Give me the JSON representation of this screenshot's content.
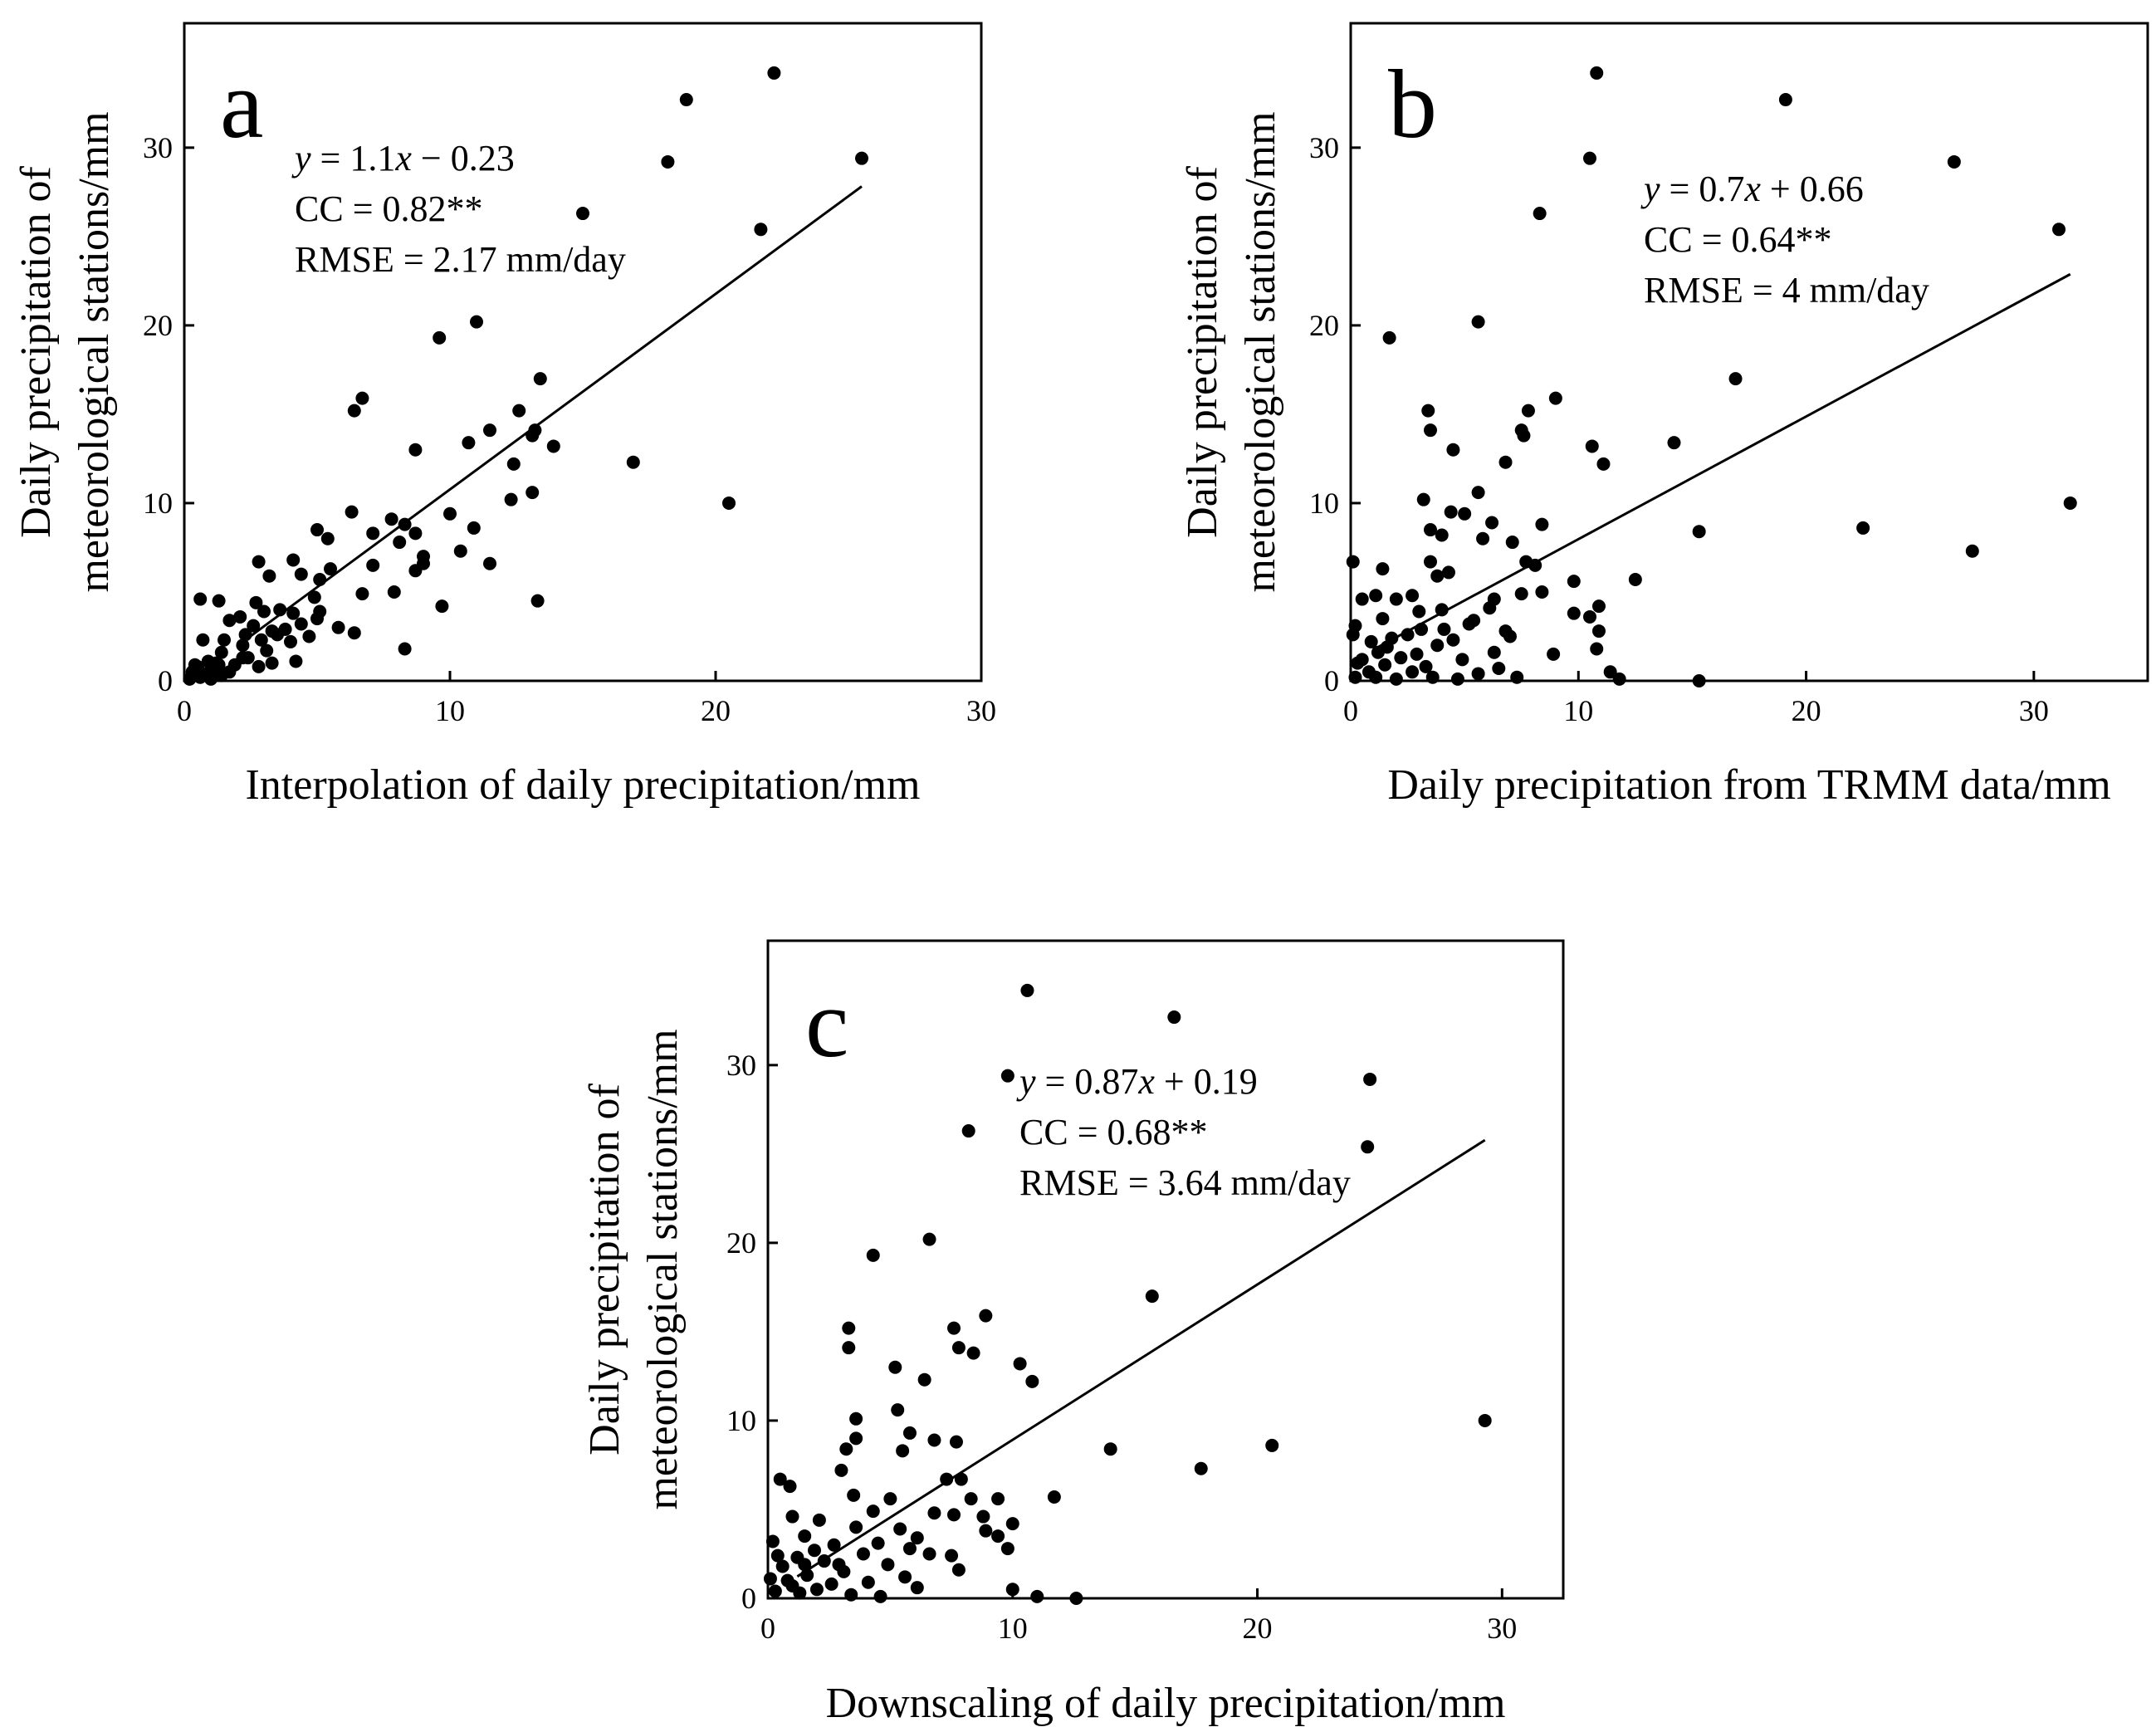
{
  "figure_title": "",
  "chart_data": [
    {
      "type": "scatter",
      "panel_label": "a",
      "title": "",
      "xlabel": "Interpolation of daily precipitation/mm",
      "ylabel_line1": "Daily precipitation of",
      "ylabel_line2": "meteorological stations/mm",
      "xlim": [
        0,
        30
      ],
      "ylim": [
        0,
        37
      ],
      "xticks": [
        0,
        10,
        20,
        30
      ],
      "yticks": [
        0,
        10,
        20,
        30
      ],
      "grid": false,
      "equation": "y = 1.1x − 0.23",
      "equation_y": "y",
      "equation_mid": " = 1.1",
      "equation_x": "x",
      "equation_tail": " − 0.23",
      "cc": "CC = 0.82**",
      "rmse": "RMSE = 2.17 mm/day",
      "fit_line": {
        "x": [
          2.0,
          25.5
        ],
        "y": [
          1.97,
          27.82
        ]
      },
      "points": [
        [
          22.2,
          34.2
        ],
        [
          18.9,
          32.7
        ],
        [
          25.5,
          29.4
        ],
        [
          18.2,
          29.2
        ],
        [
          15.0,
          26.3
        ],
        [
          21.7,
          25.4
        ],
        [
          11.0,
          20.2
        ],
        [
          9.6,
          19.3
        ],
        [
          13.4,
          17.0
        ],
        [
          6.7,
          15.9
        ],
        [
          6.4,
          15.2
        ],
        [
          12.6,
          15.2
        ],
        [
          11.5,
          14.1
        ],
        [
          13.2,
          14.1
        ],
        [
          13.1,
          13.8
        ],
        [
          10.7,
          13.4
        ],
        [
          13.9,
          13.2
        ],
        [
          8.7,
          13.0
        ],
        [
          16.9,
          12.3
        ],
        [
          12.4,
          12.2
        ],
        [
          13.1,
          10.6
        ],
        [
          12.3,
          10.2
        ],
        [
          20.5,
          10.0
        ],
        [
          6.3,
          9.5
        ],
        [
          10.0,
          9.4
        ],
        [
          7.8,
          9.1
        ],
        [
          8.3,
          8.8
        ],
        [
          5.0,
          8.5
        ],
        [
          10.9,
          8.6
        ],
        [
          7.1,
          8.3
        ],
        [
          8.7,
          8.3
        ],
        [
          5.4,
          8.0
        ],
        [
          8.1,
          7.8
        ],
        [
          10.4,
          7.3
        ],
        [
          9.0,
          7.0
        ],
        [
          4.1,
          6.8
        ],
        [
          2.8,
          6.7
        ],
        [
          9.0,
          6.6
        ],
        [
          11.5,
          6.6
        ],
        [
          7.1,
          6.5
        ],
        [
          5.5,
          6.3
        ],
        [
          8.7,
          6.2
        ],
        [
          4.4,
          6.0
        ],
        [
          3.2,
          5.9
        ],
        [
          5.1,
          5.7
        ],
        [
          7.9,
          5.0
        ],
        [
          6.7,
          4.9
        ],
        [
          4.9,
          4.7
        ],
        [
          13.3,
          4.5
        ],
        [
          0.6,
          4.6
        ],
        [
          1.3,
          4.5
        ],
        [
          2.7,
          4.4
        ],
        [
          9.7,
          4.2
        ],
        [
          3.6,
          4.0
        ],
        [
          5.1,
          3.9
        ],
        [
          3.0,
          3.9
        ],
        [
          4.1,
          3.8
        ],
        [
          2.1,
          3.6
        ],
        [
          1.7,
          3.4
        ],
        [
          4.4,
          3.2
        ],
        [
          2.6,
          3.1
        ],
        [
          5.8,
          3.0
        ],
        [
          3.3,
          2.8
        ],
        [
          6.4,
          2.7
        ],
        [
          3.5,
          2.6
        ],
        [
          4.7,
          2.5
        ],
        [
          1.5,
          2.3
        ],
        [
          4.0,
          2.2
        ],
        [
          2.2,
          2.0
        ],
        [
          0.7,
          2.3
        ],
        [
          5.0,
          3.5
        ],
        [
          8.3,
          1.8
        ],
        [
          3.1,
          1.7
        ],
        [
          1.4,
          1.6
        ],
        [
          4.2,
          1.1
        ],
        [
          2.4,
          1.3
        ],
        [
          3.3,
          1.0
        ],
        [
          1.9,
          0.9
        ],
        [
          2.8,
          0.8
        ],
        [
          1.2,
          1.0
        ],
        [
          0.3,
          0.5
        ],
        [
          0.5,
          0.8
        ],
        [
          0.8,
          0.4
        ],
        [
          1.1,
          0.6
        ],
        [
          1.4,
          0.3
        ],
        [
          0.2,
          0.1
        ],
        [
          0.6,
          0.2
        ],
        [
          1.0,
          0.1
        ],
        [
          1.7,
          0.5
        ],
        [
          0.4,
          0.9
        ],
        [
          0.9,
          1.1
        ],
        [
          1.3,
          0.9
        ],
        [
          2.2,
          1.3
        ],
        [
          2.9,
          2.3
        ],
        [
          2.3,
          2.6
        ],
        [
          3.8,
          2.9
        ]
      ]
    },
    {
      "type": "scatter",
      "panel_label": "b",
      "title": "",
      "xlabel": "Daily precipitation from TRMM data/mm",
      "ylabel_line1": "Daily precipitation of",
      "ylabel_line2": "meteorological stations/mm",
      "xlim": [
        0,
        35
      ],
      "ylim": [
        0,
        37
      ],
      "xticks": [
        0,
        10,
        20,
        30
      ],
      "yticks": [
        0,
        10,
        20,
        30
      ],
      "grid": false,
      "equation": "y = 0.7x + 0.66",
      "equation_y": "y",
      "equation_mid": " = 0.7",
      "equation_x": "x",
      "equation_tail": " + 0.66",
      "cc": "CC = 0.64**",
      "rmse": "RMSE = 4 mm/day",
      "fit_line": {
        "x": [
          1.0,
          31.6
        ],
        "y": [
          1.76,
          22.88
        ]
      },
      "points": [
        [
          10.8,
          34.2
        ],
        [
          19.1,
          32.7
        ],
        [
          10.5,
          29.4
        ],
        [
          26.5,
          29.2
        ],
        [
          8.3,
          26.3
        ],
        [
          31.1,
          25.4
        ],
        [
          5.6,
          20.2
        ],
        [
          1.7,
          19.3
        ],
        [
          16.9,
          17.0
        ],
        [
          9.0,
          15.9
        ],
        [
          3.4,
          15.2
        ],
        [
          7.8,
          15.2
        ],
        [
          3.5,
          14.1
        ],
        [
          7.5,
          14.1
        ],
        [
          7.6,
          13.8
        ],
        [
          14.2,
          13.4
        ],
        [
          10.6,
          13.2
        ],
        [
          4.5,
          13.0
        ],
        [
          6.8,
          12.3
        ],
        [
          11.1,
          12.2
        ],
        [
          5.6,
          10.6
        ],
        [
          3.2,
          10.2
        ],
        [
          31.6,
          10.0
        ],
        [
          4.4,
          9.5
        ],
        [
          5.0,
          9.4
        ],
        [
          6.2,
          8.9
        ],
        [
          8.4,
          8.8
        ],
        [
          3.5,
          8.5
        ],
        [
          22.5,
          8.6
        ],
        [
          15.3,
          8.4
        ],
        [
          4.0,
          8.2
        ],
        [
          5.8,
          8.0
        ],
        [
          27.3,
          7.3
        ],
        [
          7.1,
          7.8
        ],
        [
          7.7,
          6.7
        ],
        [
          3.5,
          6.7
        ],
        [
          0.1,
          6.7
        ],
        [
          8.1,
          6.5
        ],
        [
          4.3,
          6.1
        ],
        [
          1.4,
          6.3
        ],
        [
          12.5,
          5.7
        ],
        [
          9.8,
          5.6
        ],
        [
          3.8,
          5.9
        ],
        [
          8.4,
          5.0
        ],
        [
          1.1,
          4.8
        ],
        [
          7.5,
          4.9
        ],
        [
          6.3,
          4.6
        ],
        [
          2.7,
          4.8
        ],
        [
          0.5,
          4.6
        ],
        [
          2.0,
          4.6
        ],
        [
          10.9,
          4.2
        ],
        [
          4.0,
          4.0
        ],
        [
          6.1,
          4.1
        ],
        [
          9.8,
          3.8
        ],
        [
          3.0,
          3.9
        ],
        [
          10.5,
          3.6
        ],
        [
          1.4,
          3.5
        ],
        [
          5.4,
          3.4
        ],
        [
          0.2,
          3.1
        ],
        [
          3.1,
          2.9
        ],
        [
          6.8,
          2.8
        ],
        [
          10.9,
          2.8
        ],
        [
          2.5,
          2.6
        ],
        [
          7.0,
          2.5
        ],
        [
          1.8,
          2.4
        ],
        [
          4.5,
          2.3
        ],
        [
          0.9,
          2.2
        ],
        [
          3.8,
          2.0
        ],
        [
          10.8,
          1.8
        ],
        [
          1.2,
          1.6
        ],
        [
          6.3,
          1.6
        ],
        [
          8.9,
          1.5
        ],
        [
          2.2,
          1.3
        ],
        [
          4.9,
          1.2
        ],
        [
          0.3,
          1.0
        ],
        [
          1.5,
          0.9
        ],
        [
          3.3,
          0.8
        ],
        [
          6.5,
          0.7
        ],
        [
          0.8,
          0.5
        ],
        [
          2.7,
          0.5
        ],
        [
          5.6,
          0.4
        ],
        [
          11.4,
          0.5
        ],
        [
          0.2,
          0.2
        ],
        [
          1.1,
          0.2
        ],
        [
          2.0,
          0.1
        ],
        [
          3.6,
          0.2
        ],
        [
          4.7,
          0.1
        ],
        [
          7.3,
          0.2
        ],
        [
          11.8,
          0.1
        ],
        [
          15.3,
          0.0
        ],
        [
          0.5,
          1.2
        ],
        [
          0.1,
          2.6
        ],
        [
          1.6,
          1.9
        ],
        [
          2.9,
          1.5
        ],
        [
          4.1,
          2.9
        ],
        [
          5.2,
          3.2
        ]
      ]
    },
    {
      "type": "scatter",
      "panel_label": "c",
      "title": "",
      "xlabel": "Downscaling of daily precipitation/mm",
      "ylabel_line1": "Daily precipitation of",
      "ylabel_line2": "meteorological stations/mm",
      "xlim": [
        0,
        32.5
      ],
      "ylim": [
        0,
        37
      ],
      "xticks": [
        0,
        10,
        20,
        30
      ],
      "yticks": [
        0,
        10,
        20,
        30
      ],
      "grid": false,
      "equation": "y = 0.87x + 0.19",
      "equation_y": "y",
      "equation_mid": " = 0.87",
      "equation_x": "x",
      "equation_tail": " + 0.19",
      "cc": "CC = 0.68**",
      "rmse": "RMSE = 3.64 mm/day",
      "fit_line": {
        "x": [
          1.2,
          29.3
        ],
        "y": [
          1.23,
          25.78
        ]
      },
      "points": [
        [
          10.6,
          34.2
        ],
        [
          16.6,
          32.7
        ],
        [
          9.8,
          29.4
        ],
        [
          24.6,
          29.2
        ],
        [
          8.2,
          26.3
        ],
        [
          24.5,
          25.4
        ],
        [
          6.6,
          20.2
        ],
        [
          4.3,
          19.3
        ],
        [
          15.7,
          17.0
        ],
        [
          8.9,
          15.9
        ],
        [
          3.3,
          15.2
        ],
        [
          7.6,
          15.2
        ],
        [
          3.3,
          14.1
        ],
        [
          7.8,
          14.1
        ],
        [
          8.4,
          13.8
        ],
        [
          10.3,
          13.2
        ],
        [
          5.2,
          13.0
        ],
        [
          6.4,
          12.3
        ],
        [
          10.8,
          12.2
        ],
        [
          5.3,
          10.6
        ],
        [
          3.6,
          10.1
        ],
        [
          29.3,
          10.0
        ],
        [
          5.8,
          9.3
        ],
        [
          3.6,
          9.0
        ],
        [
          6.8,
          8.9
        ],
        [
          7.7,
          8.8
        ],
        [
          14.0,
          8.4
        ],
        [
          20.6,
          8.6
        ],
        [
          3.2,
          8.4
        ],
        [
          5.5,
          8.3
        ],
        [
          17.7,
          7.3
        ],
        [
          3.0,
          7.2
        ],
        [
          7.3,
          6.7
        ],
        [
          7.9,
          6.7
        ],
        [
          0.5,
          6.7
        ],
        [
          0.9,
          6.3
        ],
        [
          11.7,
          5.7
        ],
        [
          8.3,
          5.6
        ],
        [
          3.5,
          5.8
        ],
        [
          5.0,
          5.6
        ],
        [
          9.4,
          5.6
        ],
        [
          4.3,
          4.9
        ],
        [
          6.8,
          4.8
        ],
        [
          7.6,
          4.7
        ],
        [
          8.8,
          4.6
        ],
        [
          1.0,
          4.6
        ],
        [
          2.1,
          4.4
        ],
        [
          10.0,
          4.2
        ],
        [
          3.6,
          4.0
        ],
        [
          5.4,
          3.9
        ],
        [
          8.9,
          3.8
        ],
        [
          9.4,
          3.5
        ],
        [
          1.5,
          3.5
        ],
        [
          6.1,
          3.4
        ],
        [
          4.5,
          3.1
        ],
        [
          2.7,
          3.0
        ],
        [
          9.8,
          2.8
        ],
        [
          5.8,
          2.8
        ],
        [
          3.9,
          2.5
        ],
        [
          6.6,
          2.5
        ],
        [
          7.5,
          2.4
        ],
        [
          1.2,
          2.3
        ],
        [
          2.3,
          2.1
        ],
        [
          4.9,
          1.9
        ],
        [
          7.8,
          1.6
        ],
        [
          3.1,
          1.5
        ],
        [
          1.6,
          1.3
        ],
        [
          5.6,
          1.2
        ],
        [
          0.8,
          1.0
        ],
        [
          4.1,
          0.9
        ],
        [
          2.6,
          0.8
        ],
        [
          6.1,
          0.6
        ],
        [
          10.0,
          0.5
        ],
        [
          0.3,
          0.4
        ],
        [
          1.3,
          0.3
        ],
        [
          3.4,
          0.2
        ],
        [
          4.6,
          0.1
        ],
        [
          11.0,
          0.1
        ],
        [
          12.6,
          0.0
        ],
        [
          0.2,
          3.2
        ],
        [
          0.6,
          1.8
        ],
        [
          1.9,
          2.7
        ],
        [
          2.9,
          1.9
        ],
        [
          0.4,
          2.4
        ],
        [
          1.0,
          0.7
        ],
        [
          2.0,
          0.5
        ],
        [
          0.1,
          1.1
        ],
        [
          1.5,
          1.9
        ]
      ]
    }
  ]
}
